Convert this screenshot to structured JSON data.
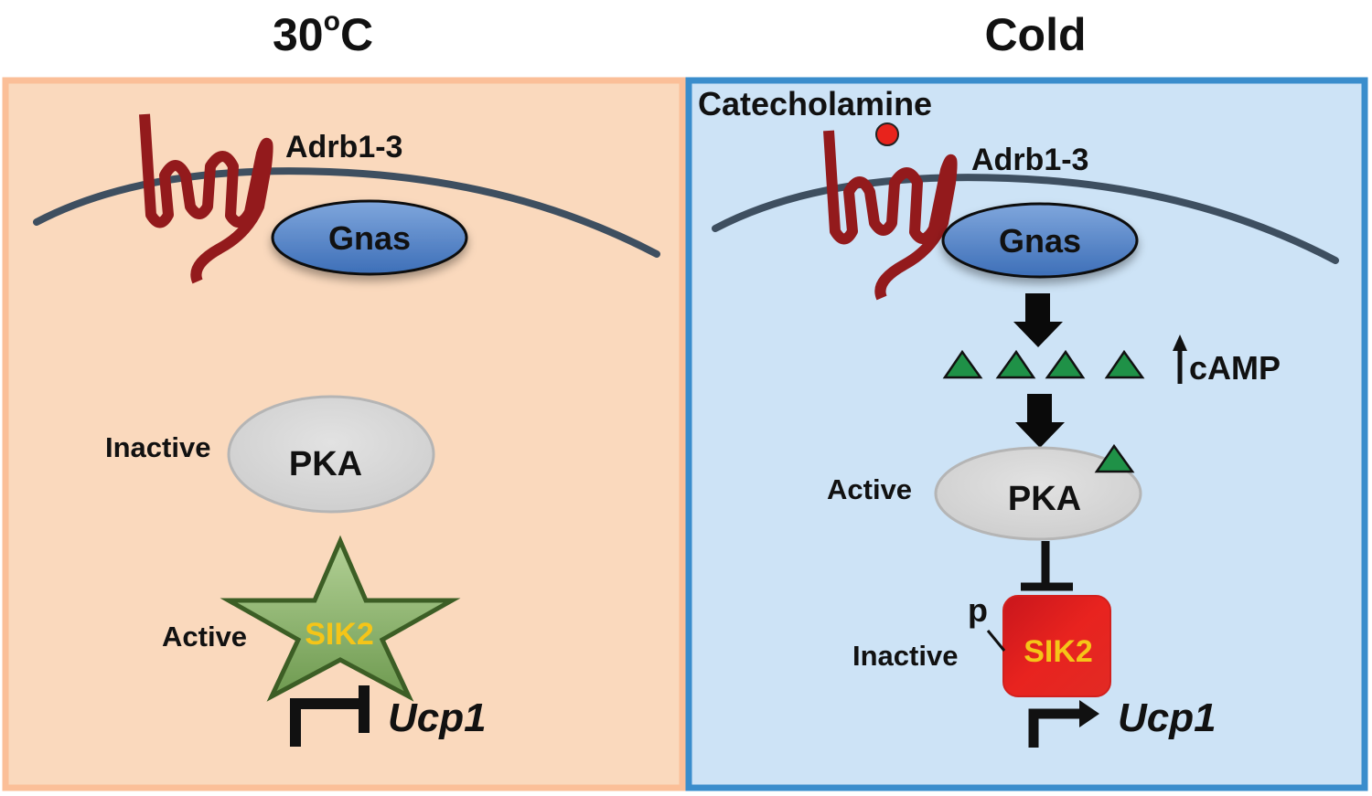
{
  "panels": {
    "warm": {
      "title": "30",
      "title_sup": "o",
      "title_unit": "C",
      "receptor": "Adrb1-3",
      "g_protein": "Gnas",
      "pka_state": "Inactive",
      "pka": "PKA",
      "sik2_state": "Active",
      "sik2": "SIK2",
      "gene": "Ucp1",
      "bg_color": "#fad9bd",
      "border_color": "#fbbf98"
    },
    "cold": {
      "title": "Cold",
      "ligand": "Catecholamine",
      "receptor": "Adrb1-3",
      "g_protein": "Gnas",
      "second_messenger": "cAMP",
      "pka_state": "Active",
      "pka": "PKA",
      "phospho": "p",
      "sik2_state": "Inactive",
      "sik2": "SIK2",
      "gene": "Ucp1",
      "bg_color": "#cde3f6",
      "border_color": "#3a8dcc"
    }
  }
}
